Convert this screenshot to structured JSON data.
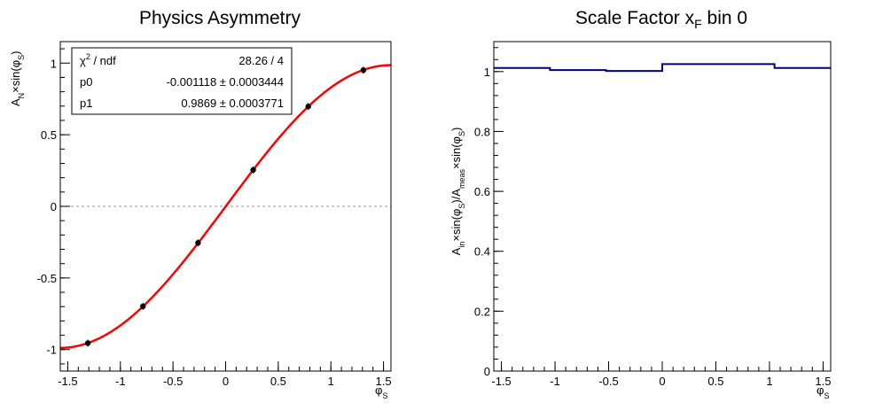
{
  "chart_data": [
    {
      "type": "scatter",
      "title": "Physics Asymmetry",
      "xlabel": {
        "main": "φ",
        "sub": "S"
      },
      "ylabel": {
        "main": "A",
        "sub1": "N",
        "mid": "×sin(φ",
        "sub2": "S",
        "end": ")"
      },
      "xlim": [
        -1.571,
        1.571
      ],
      "ylim": [
        -1.15,
        1.15
      ],
      "xticks": [
        "-1.5",
        "-1",
        "-0.5",
        "0",
        "0.5",
        "1",
        "1.5"
      ],
      "xtick_values": [
        -1.5,
        -1,
        -0.5,
        0,
        0.5,
        1,
        1.5
      ],
      "yticks": [
        "-1",
        "-0.5",
        "0",
        "0.5",
        "1"
      ],
      "ytick_values": [
        -1,
        -0.5,
        0,
        0.5,
        1
      ],
      "zero_line": true,
      "points": [
        {
          "x": -1.309,
          "y": -0.955
        },
        {
          "x": -0.785,
          "y": -0.698
        },
        {
          "x": -0.262,
          "y": -0.255
        },
        {
          "x": 0.262,
          "y": 0.254
        },
        {
          "x": 0.785,
          "y": 0.697
        },
        {
          "x": 1.309,
          "y": 0.951
        }
      ],
      "fit": {
        "function": "p0 + p1*sin(x)",
        "p0": -0.001118,
        "p1": 0.9869,
        "color": "#ff0000"
      },
      "stats_box": {
        "placement": "top-left",
        "rows": [
          {
            "label_main": "χ",
            "label_sup": "2",
            "label_rest": " / ndf",
            "value": "28.26 / 4"
          },
          {
            "label_main": "p0",
            "label_sup": "",
            "label_rest": "",
            "value": "-0.001118 ± 0.0003444"
          },
          {
            "label_main": "p1",
            "label_sup": "",
            "label_rest": "",
            "value": "0.9869 ± 0.0003771"
          }
        ]
      }
    },
    {
      "type": "line",
      "style": "histogram-step",
      "title": {
        "main": "Scale Factor x",
        "sub": "F",
        "end": " bin 0"
      },
      "xlabel": {
        "main": "φ",
        "sub": "S"
      },
      "ylabel": {
        "p1": "A",
        "s1": "in",
        "p2": "×sin(φ",
        "s2": "S",
        "p3": ")/A",
        "s3": "meas",
        "p4": "×sin(φ",
        "s4": "S",
        "p5": ")"
      },
      "xlim": [
        -1.571,
        1.571
      ],
      "ylim": [
        0,
        1.1
      ],
      "xticks": [
        "-1.5",
        "-1",
        "-0.5",
        "0",
        "0.5",
        "1",
        "1.5"
      ],
      "xtick_values": [
        -1.5,
        -1,
        -0.5,
        0,
        0.5,
        1,
        1.5
      ],
      "yticks": [
        "0",
        "0.2",
        "0.4",
        "0.6",
        "0.8",
        "1"
      ],
      "ytick_values": [
        0,
        0.2,
        0.4,
        0.6,
        0.8,
        1
      ],
      "bin_edges": [
        -1.571,
        -1.047,
        -0.524,
        0,
        0.524,
        1.047,
        1.571
      ],
      "values": [
        1.012,
        1.005,
        1.002,
        1.025,
        1.025,
        1.012
      ],
      "color": "#000080"
    }
  ]
}
